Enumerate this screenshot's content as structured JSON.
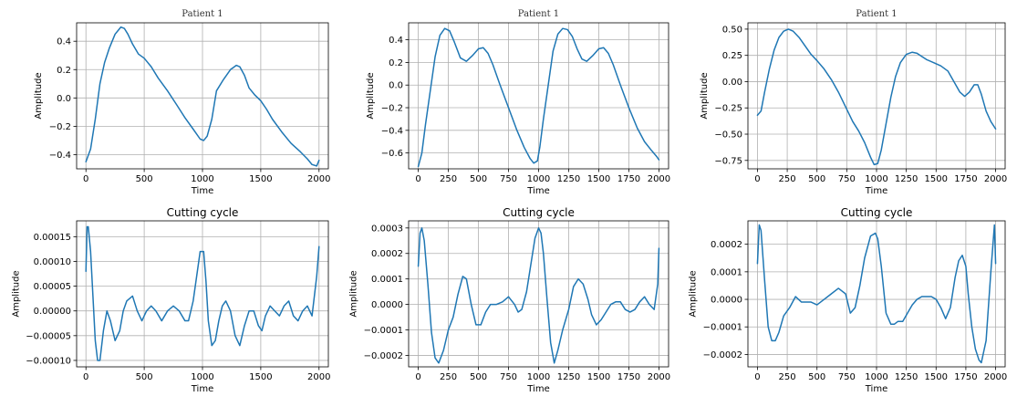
{
  "chart_data": [
    {
      "type": "line",
      "title": "Patient 1",
      "title_style": "serif",
      "xlabel": "Time",
      "ylabel": "Amplitude",
      "xlim": [
        -80,
        2080
      ],
      "ylim": [
        -0.5,
        0.53
      ],
      "xticks": [
        0,
        500,
        1000,
        1500,
        2000
      ],
      "xtick_labels": [
        "0",
        "500",
        "1000",
        "1500",
        "2000"
      ],
      "yticks": [
        -0.4,
        -0.2,
        0.0,
        0.2,
        0.4
      ],
      "ytick_labels": [
        "−0.4",
        "−0.2",
        "0.0",
        "0.2",
        "0.4"
      ],
      "grid": true,
      "color": "#1f77b4",
      "series": [
        {
          "x": [
            0,
            40,
            80,
            120,
            160,
            200,
            250,
            300,
            330,
            360,
            400,
            450,
            500,
            560,
            620,
            700,
            780,
            850,
            920,
            980,
            1010,
            1040,
            1080,
            1120,
            1180,
            1240,
            1290,
            1320,
            1360,
            1400,
            1450,
            1500,
            1550,
            1600,
            1680,
            1760,
            1840,
            1900,
            1940,
            1980,
            2000
          ],
          "y": [
            -0.45,
            -0.36,
            -0.15,
            0.1,
            0.25,
            0.35,
            0.45,
            0.5,
            0.49,
            0.45,
            0.38,
            0.31,
            0.28,
            0.22,
            0.14,
            0.05,
            -0.05,
            -0.14,
            -0.22,
            -0.29,
            -0.3,
            -0.27,
            -0.15,
            0.05,
            0.13,
            0.2,
            0.23,
            0.22,
            0.16,
            0.07,
            0.02,
            -0.02,
            -0.08,
            -0.15,
            -0.24,
            -0.32,
            -0.38,
            -0.43,
            -0.47,
            -0.48,
            -0.44
          ]
        }
      ]
    },
    {
      "type": "line",
      "title": "Patient 1",
      "title_style": "serif",
      "xlabel": "Time",
      "ylabel": "Amplitude",
      "xlim": [
        -80,
        2080
      ],
      "ylim": [
        -0.74,
        0.55
      ],
      "xticks": [
        0,
        250,
        500,
        750,
        1000,
        1250,
        1500,
        1750,
        2000
      ],
      "xtick_labels": [
        "0",
        "250",
        "500",
        "750",
        "1000",
        "1250",
        "1500",
        "1750",
        "2000"
      ],
      "yticks": [
        -0.6,
        -0.4,
        -0.2,
        0.0,
        0.2,
        0.4
      ],
      "ytick_labels": [
        "−0.6",
        "−0.4",
        "−0.2",
        "0.0",
        "0.2",
        "0.4"
      ],
      "grid": true,
      "color": "#1f77b4",
      "series": [
        {
          "x": [
            0,
            30,
            60,
            100,
            140,
            180,
            220,
            260,
            300,
            350,
            400,
            450,
            500,
            540,
            580,
            620,
            680,
            750,
            820,
            880,
            930,
            960,
            990,
            1010,
            1040,
            1080,
            1120,
            1160,
            1200,
            1240,
            1280,
            1320,
            1360,
            1400,
            1450,
            1500,
            1540,
            1580,
            1620,
            1680,
            1750,
            1820,
            1880,
            1940,
            1980,
            2000
          ],
          "y": [
            -0.72,
            -0.6,
            -0.35,
            -0.05,
            0.25,
            0.44,
            0.5,
            0.48,
            0.38,
            0.24,
            0.21,
            0.26,
            0.32,
            0.33,
            0.28,
            0.18,
            0.0,
            -0.2,
            -0.4,
            -0.55,
            -0.65,
            -0.69,
            -0.67,
            -0.55,
            -0.3,
            0.0,
            0.3,
            0.45,
            0.5,
            0.49,
            0.43,
            0.32,
            0.23,
            0.21,
            0.26,
            0.32,
            0.33,
            0.28,
            0.18,
            0.0,
            -0.2,
            -0.38,
            -0.5,
            -0.58,
            -0.63,
            -0.66
          ]
        }
      ]
    },
    {
      "type": "line",
      "title": "Patient 1",
      "title_style": "serif",
      "xlabel": "Time",
      "ylabel": "Amplitude",
      "xlim": [
        -80,
        2080
      ],
      "ylim": [
        -0.83,
        0.56
      ],
      "xticks": [
        0,
        250,
        500,
        750,
        1000,
        1250,
        1500,
        1750,
        2000
      ],
      "xtick_labels": [
        "0",
        "250",
        "500",
        "750",
        "1000",
        "1250",
        "1500",
        "1750",
        "2000"
      ],
      "yticks": [
        -0.75,
        -0.5,
        -0.25,
        0.0,
        0.25,
        0.5
      ],
      "ytick_labels": [
        "−0.75",
        "−0.50",
        "−0.25",
        "0.00",
        "0.25",
        "0.50"
      ],
      "grid": true,
      "color": "#1f77b4",
      "series": [
        {
          "x": [
            0,
            30,
            60,
            100,
            140,
            180,
            220,
            260,
            300,
            350,
            400,
            450,
            500,
            560,
            620,
            680,
            740,
            800,
            850,
            900,
            950,
            980,
            1010,
            1040,
            1080,
            1120,
            1160,
            1200,
            1250,
            1300,
            1340,
            1380,
            1420,
            1480,
            1540,
            1600,
            1650,
            1700,
            1740,
            1780,
            1820,
            1850,
            1880,
            1920,
            1960,
            2000
          ],
          "y": [
            -0.32,
            -0.28,
            -0.1,
            0.12,
            0.3,
            0.42,
            0.48,
            0.5,
            0.48,
            0.42,
            0.34,
            0.26,
            0.2,
            0.12,
            0.02,
            -0.1,
            -0.24,
            -0.38,
            -0.47,
            -0.58,
            -0.72,
            -0.79,
            -0.78,
            -0.65,
            -0.4,
            -0.15,
            0.05,
            0.18,
            0.26,
            0.28,
            0.27,
            0.24,
            0.21,
            0.18,
            0.15,
            0.1,
            0.0,
            -0.1,
            -0.14,
            -0.1,
            -0.03,
            -0.03,
            -0.12,
            -0.28,
            -0.38,
            -0.45
          ]
        }
      ]
    },
    {
      "type": "line",
      "title": "Cutting cycle",
      "title_style": "sans",
      "xlabel": "Time",
      "ylabel": "Amplitude",
      "xlim": [
        -80,
        2080
      ],
      "ylim": [
        -0.000113,
        0.000182
      ],
      "xticks": [
        0,
        500,
        1000,
        1500,
        2000
      ],
      "xtick_labels": [
        "0",
        "500",
        "1000",
        "1500",
        "2000"
      ],
      "yticks": [
        -0.0001,
        -5e-05,
        0.0,
        5e-05,
        0.0001,
        0.00015
      ],
      "ytick_labels": [
        "−0.00010",
        "−0.00005",
        "0.00000",
        "0.00005",
        "0.00010",
        "0.00015"
      ],
      "grid": true,
      "color": "#1f77b4",
      "series": [
        {
          "x": [
            0,
            10,
            20,
            40,
            60,
            80,
            100,
            120,
            150,
            180,
            210,
            250,
            290,
            320,
            350,
            400,
            440,
            480,
            520,
            560,
            600,
            650,
            700,
            750,
            800,
            850,
            880,
            920,
            950,
            980,
            1010,
            1030,
            1050,
            1080,
            1110,
            1140,
            1170,
            1200,
            1240,
            1280,
            1320,
            1360,
            1400,
            1440,
            1480,
            1510,
            1540,
            1580,
            1620,
            1660,
            1700,
            1740,
            1780,
            1820,
            1860,
            1900,
            1940,
            1980,
            2000
          ],
          "y": [
            8e-05,
            0.00017,
            0.00017,
            0.00012,
            3e-05,
            -6e-05,
            -0.0001,
            -0.0001,
            -4e-05,
            0.0,
            -2e-05,
            -6e-05,
            -4e-05,
            0.0,
            2e-05,
            3e-05,
            0.0,
            -2e-05,
            0.0,
            1e-05,
            0.0,
            -2e-05,
            0.0,
            1e-05,
            0.0,
            -2e-05,
            -2e-05,
            2e-05,
            7e-05,
            0.00012,
            0.00012,
            6e-05,
            -2e-05,
            -7e-05,
            -6e-05,
            -2e-05,
            1e-05,
            2e-05,
            0.0,
            -5e-05,
            -7e-05,
            -3e-05,
            0.0,
            0.0,
            -3e-05,
            -4e-05,
            -1e-05,
            1e-05,
            0.0,
            -1e-05,
            1e-05,
            2e-05,
            -1e-05,
            -2e-05,
            0.0,
            1e-05,
            -1e-05,
            7e-05,
            0.00013
          ]
        }
      ]
    },
    {
      "type": "line",
      "title": "Cutting cycle",
      "title_style": "sans",
      "xlabel": "Time",
      "ylabel": "Amplitude",
      "xlim": [
        -80,
        2080
      ],
      "ylim": [
        -0.000245,
        0.000328
      ],
      "xticks": [
        0,
        250,
        500,
        750,
        1000,
        1250,
        1500,
        1750,
        2000
      ],
      "xtick_labels": [
        "0",
        "250",
        "500",
        "750",
        "1000",
        "1250",
        "1500",
        "1750",
        "2000"
      ],
      "yticks": [
        -0.0002,
        -0.0001,
        0.0,
        0.0001,
        0.0002,
        0.0003
      ],
      "ytick_labels": [
        "−0.0002",
        "−0.0001",
        "0.0000",
        "0.0001",
        "0.0002",
        "0.0003"
      ],
      "grid": true,
      "color": "#1f77b4",
      "series": [
        {
          "x": [
            0,
            15,
            30,
            50,
            80,
            110,
            140,
            170,
            210,
            250,
            290,
            330,
            370,
            400,
            440,
            480,
            520,
            560,
            600,
            650,
            700,
            750,
            800,
            830,
            860,
            900,
            940,
            970,
            1000,
            1020,
            1040,
            1070,
            1100,
            1130,
            1160,
            1200,
            1250,
            1290,
            1330,
            1370,
            1410,
            1440,
            1480,
            1520,
            1560,
            1600,
            1640,
            1680,
            1720,
            1760,
            1800,
            1840,
            1880,
            1920,
            1960,
            1990,
            2000
          ],
          "y": [
            0.00015,
            0.00028,
            0.0003,
            0.00025,
            8e-05,
            -0.00011,
            -0.00021,
            -0.00023,
            -0.00018,
            -0.0001,
            -5e-05,
            4e-05,
            0.00011,
            0.0001,
            0.0,
            -8e-05,
            -8e-05,
            -3e-05,
            0.0,
            0.0,
            1e-05,
            3e-05,
            0.0,
            -3e-05,
            -2e-05,
            5e-05,
            0.00017,
            0.00026,
            0.0003,
            0.00028,
            0.0002,
            2e-05,
            -0.00015,
            -0.00023,
            -0.00018,
            -0.0001,
            -2e-05,
            7e-05,
            0.0001,
            8e-05,
            2e-05,
            -4e-05,
            -8e-05,
            -6e-05,
            -3e-05,
            0.0,
            1e-05,
            1e-05,
            -2e-05,
            -3e-05,
            -2e-05,
            1e-05,
            3e-05,
            0.0,
            -2e-05,
            8e-05,
            0.00022
          ]
        }
      ]
    },
    {
      "type": "line",
      "title": "Cutting cycle",
      "title_style": "sans",
      "xlabel": "Time",
      "ylabel": "Amplitude",
      "xlim": [
        -80,
        2080
      ],
      "ylim": [
        -0.000245,
        0.000285
      ],
      "xticks": [
        0,
        250,
        500,
        750,
        1000,
        1250,
        1500,
        1750,
        2000
      ],
      "xtick_labels": [
        "0",
        "250",
        "500",
        "750",
        "1000",
        "1250",
        "1500",
        "1750",
        "2000"
      ],
      "yticks": [
        -0.0002,
        -0.0001,
        0.0,
        0.0001,
        0.0002
      ],
      "ytick_labels": [
        "−0.0002",
        "−0.0001",
        "0.0000",
        "0.0001",
        "0.0002"
      ],
      "grid": true,
      "color": "#1f77b4",
      "series": [
        {
          "x": [
            0,
            15,
            30,
            60,
            90,
            120,
            150,
            180,
            220,
            270,
            320,
            370,
            410,
            450,
            500,
            560,
            620,
            680,
            740,
            780,
            820,
            860,
            900,
            950,
            990,
            1010,
            1040,
            1080,
            1120,
            1150,
            1180,
            1220,
            1260,
            1300,
            1340,
            1380,
            1420,
            1460,
            1500,
            1540,
            1580,
            1620,
            1660,
            1690,
            1720,
            1750,
            1770,
            1800,
            1830,
            1860,
            1880,
            1920,
            1960,
            1990,
            2000
          ],
          "y": [
            0.00013,
            0.00027,
            0.00025,
            7e-05,
            -0.0001,
            -0.00015,
            -0.00015,
            -0.00012,
            -6e-05,
            -3e-05,
            1e-05,
            -1e-05,
            -1e-05,
            -1e-05,
            -2e-05,
            0.0,
            2e-05,
            4e-05,
            2e-05,
            -5e-05,
            -3e-05,
            5e-05,
            0.00015,
            0.00023,
            0.00024,
            0.00022,
            0.00012,
            -5e-05,
            -9e-05,
            -9e-05,
            -8e-05,
            -8e-05,
            -5e-05,
            -2e-05,
            0.0,
            1e-05,
            1e-05,
            1e-05,
            0.0,
            -3e-05,
            -7e-05,
            -3e-05,
            8e-05,
            0.00014,
            0.00016,
            0.00012,
            2e-05,
            -0.0001,
            -0.00018,
            -0.00022,
            -0.00023,
            -0.00015,
            0.0001,
            0.00027,
            0.00013
          ]
        }
      ]
    }
  ]
}
